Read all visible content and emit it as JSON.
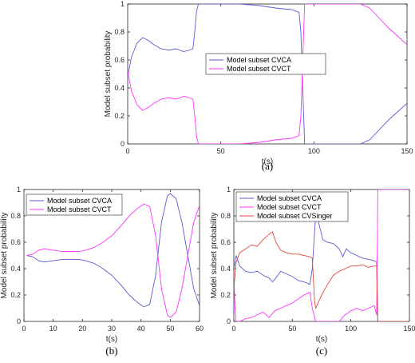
{
  "colors": {
    "cvca": "#5b5bd6",
    "cvct": "#ff33ff",
    "cvsinger": "#e8473a",
    "axis": "#262626"
  },
  "chart_data": [
    {
      "type": "line",
      "caption": "(a)",
      "xlabel": "t(s)",
      "ylabel": "Model subset probability",
      "xlim": [
        0,
        150
      ],
      "ylim": [
        0,
        1
      ],
      "xticks": [
        0,
        50,
        100,
        150
      ],
      "yticks": [
        0,
        0.2,
        0.4,
        0.6,
        0.8,
        1
      ],
      "legend_position": "center-right",
      "series": [
        {
          "name": "Model subset CVCA",
          "color": "cvca",
          "points": [
            [
              0,
              0.48
            ],
            [
              2,
              0.62
            ],
            [
              5,
              0.72
            ],
            [
              8,
              0.76
            ],
            [
              11,
              0.74
            ],
            [
              14,
              0.71
            ],
            [
              18,
              0.68
            ],
            [
              22,
              0.67
            ],
            [
              26,
              0.68
            ],
            [
              30,
              0.66
            ],
            [
              33,
              0.67
            ],
            [
              35,
              0.68
            ],
            [
              36,
              0.8
            ],
            [
              37,
              0.95
            ],
            [
              38,
              1.0
            ],
            [
              60,
              1.0
            ],
            [
              70,
              0.99
            ],
            [
              80,
              0.97
            ],
            [
              88,
              0.96
            ],
            [
              92,
              0.94
            ],
            [
              93,
              0.8
            ],
            [
              94,
              0.4
            ],
            [
              95,
              0.0
            ],
            [
              125,
              0.0
            ],
            [
              130,
              0.03
            ],
            [
              135,
              0.1
            ],
            [
              140,
              0.17
            ],
            [
              145,
              0.23
            ],
            [
              150,
              0.29
            ]
          ]
        },
        {
          "name": "Model subset CVCT",
          "color": "cvct",
          "points": [
            [
              0,
              0.52
            ],
            [
              2,
              0.38
            ],
            [
              5,
              0.28
            ],
            [
              8,
              0.24
            ],
            [
              11,
              0.26
            ],
            [
              14,
              0.29
            ],
            [
              18,
              0.32
            ],
            [
              22,
              0.33
            ],
            [
              26,
              0.32
            ],
            [
              30,
              0.34
            ],
            [
              33,
              0.33
            ],
            [
              35,
              0.32
            ],
            [
              36,
              0.2
            ],
            [
              37,
              0.05
            ],
            [
              38,
              0.0
            ],
            [
              60,
              0.0
            ],
            [
              70,
              0.01
            ],
            [
              80,
              0.03
            ],
            [
              88,
              0.04
            ],
            [
              92,
              0.06
            ],
            [
              93,
              0.2
            ],
            [
              94,
              0.6
            ],
            [
              95,
              1.0
            ],
            [
              125,
              1.0
            ],
            [
              130,
              0.97
            ],
            [
              135,
              0.9
            ],
            [
              140,
              0.83
            ],
            [
              145,
              0.77
            ],
            [
              150,
              0.71
            ]
          ]
        }
      ]
    },
    {
      "type": "line",
      "caption": "(b)",
      "xlabel": "t(s)",
      "ylabel": "Model subset probability",
      "xlim": [
        0,
        60
      ],
      "ylim": [
        0,
        1
      ],
      "xticks": [
        0,
        10,
        20,
        30,
        40,
        50,
        60
      ],
      "yticks": [
        0,
        0.2,
        0.4,
        0.6,
        0.8,
        1
      ],
      "legend_position": "top-left",
      "series": [
        {
          "name": "Model subset CVCA",
          "color": "cvca",
          "points": [
            [
              1,
              0.5
            ],
            [
              3,
              0.49
            ],
            [
              5,
              0.46
            ],
            [
              7,
              0.45
            ],
            [
              10,
              0.46
            ],
            [
              13,
              0.47
            ],
            [
              16,
              0.47
            ],
            [
              19,
              0.47
            ],
            [
              21,
              0.46
            ],
            [
              24,
              0.44
            ],
            [
              27,
              0.4
            ],
            [
              30,
              0.35
            ],
            [
              33,
              0.28
            ],
            [
              36,
              0.2
            ],
            [
              39,
              0.14
            ],
            [
              41,
              0.11
            ],
            [
              43,
              0.13
            ],
            [
              45,
              0.35
            ],
            [
              47,
              0.75
            ],
            [
              49,
              0.95
            ],
            [
              50,
              0.97
            ],
            [
              52,
              0.93
            ],
            [
              54,
              0.75
            ],
            [
              56,
              0.5
            ],
            [
              58,
              0.25
            ],
            [
              60,
              0.12
            ]
          ]
        },
        {
          "name": "Model subset CVCT",
          "color": "cvct",
          "points": [
            [
              1,
              0.5
            ],
            [
              3,
              0.51
            ],
            [
              5,
              0.54
            ],
            [
              7,
              0.55
            ],
            [
              10,
              0.54
            ],
            [
              13,
              0.53
            ],
            [
              16,
              0.53
            ],
            [
              19,
              0.53
            ],
            [
              21,
              0.54
            ],
            [
              24,
              0.56
            ],
            [
              27,
              0.6
            ],
            [
              30,
              0.65
            ],
            [
              33,
              0.72
            ],
            [
              36,
              0.8
            ],
            [
              39,
              0.86
            ],
            [
              41,
              0.89
            ],
            [
              43,
              0.87
            ],
            [
              45,
              0.65
            ],
            [
              47,
              0.25
            ],
            [
              49,
              0.05
            ],
            [
              50,
              0.03
            ],
            [
              52,
              0.07
            ],
            [
              54,
              0.25
            ],
            [
              56,
              0.5
            ],
            [
              58,
              0.75
            ],
            [
              60,
              0.88
            ]
          ]
        }
      ]
    },
    {
      "type": "line",
      "caption": "(c)",
      "xlabel": "t(s)",
      "ylabel": "Model subset probability",
      "xlim": [
        0,
        150
      ],
      "ylim": [
        0,
        1
      ],
      "xticks": [
        0,
        50,
        100,
        150
      ],
      "yticks": [
        0,
        0.2,
        0.4,
        0.6,
        0.8,
        1
      ],
      "legend_position": "top-left",
      "series": [
        {
          "name": "Model subset CVCA",
          "color": "cvca",
          "points": [
            [
              0,
              0.4
            ],
            [
              2,
              0.5
            ],
            [
              5,
              0.42
            ],
            [
              10,
              0.38
            ],
            [
              15,
              0.37
            ],
            [
              20,
              0.38
            ],
            [
              25,
              0.35
            ],
            [
              30,
              0.33
            ],
            [
              33,
              0.3
            ],
            [
              36,
              0.33
            ],
            [
              40,
              0.38
            ],
            [
              45,
              0.36
            ],
            [
              50,
              0.34
            ],
            [
              55,
              0.31
            ],
            [
              60,
              0.3
            ],
            [
              65,
              0.28
            ],
            [
              67,
              0.4
            ],
            [
              70,
              0.82
            ],
            [
              73,
              0.73
            ],
            [
              76,
              0.62
            ],
            [
              80,
              0.6
            ],
            [
              85,
              0.59
            ],
            [
              90,
              0.55
            ],
            [
              93,
              0.49
            ],
            [
              96,
              0.55
            ],
            [
              100,
              0.52
            ],
            [
              105,
              0.5
            ],
            [
              110,
              0.48
            ],
            [
              115,
              0.47
            ],
            [
              120,
              0.46
            ],
            [
              122,
              0.45
            ],
            [
              123,
              0.0
            ],
            [
              150,
              0.0
            ]
          ]
        },
        {
          "name": "Model subset CVCT",
          "color": "cvct",
          "points": [
            [
              0,
              0.35
            ],
            [
              1,
              0.1
            ],
            [
              2,
              0.0
            ],
            [
              5,
              0.0
            ],
            [
              10,
              0.02
            ],
            [
              15,
              0.03
            ],
            [
              20,
              0.05
            ],
            [
              25,
              0.07
            ],
            [
              30,
              0.03
            ],
            [
              35,
              0.08
            ],
            [
              40,
              0.1
            ],
            [
              45,
              0.12
            ],
            [
              50,
              0.14
            ],
            [
              55,
              0.17
            ],
            [
              60,
              0.2
            ],
            [
              65,
              0.22
            ],
            [
              67,
              0.1
            ],
            [
              70,
              0.0
            ],
            [
              90,
              0.0
            ],
            [
              95,
              0.05
            ],
            [
              100,
              0.08
            ],
            [
              105,
              0.1
            ],
            [
              110,
              0.08
            ],
            [
              115,
              0.1
            ],
            [
              120,
              0.12
            ],
            [
              122,
              0.05
            ],
            [
              123,
              1.0
            ],
            [
              150,
              1.0
            ]
          ]
        },
        {
          "name": "Model subset CVSinger",
          "color": "cvsinger",
          "points": [
            [
              0,
              0.25
            ],
            [
              2,
              0.45
            ],
            [
              5,
              0.52
            ],
            [
              10,
              0.55
            ],
            [
              15,
              0.58
            ],
            [
              20,
              0.57
            ],
            [
              25,
              0.62
            ],
            [
              30,
              0.66
            ],
            [
              33,
              0.68
            ],
            [
              36,
              0.6
            ],
            [
              40,
              0.54
            ],
            [
              45,
              0.52
            ],
            [
              50,
              0.51
            ],
            [
              55,
              0.51
            ],
            [
              60,
              0.5
            ],
            [
              65,
              0.49
            ],
            [
              67,
              0.48
            ],
            [
              69,
              0.15
            ],
            [
              70,
              0.1
            ],
            [
              75,
              0.2
            ],
            [
              80,
              0.28
            ],
            [
              85,
              0.35
            ],
            [
              90,
              0.38
            ],
            [
              95,
              0.4
            ],
            [
              100,
              0.42
            ],
            [
              105,
              0.42
            ],
            [
              110,
              0.43
            ],
            [
              115,
              0.41
            ],
            [
              120,
              0.42
            ],
            [
              122,
              0.42
            ],
            [
              123,
              0.0
            ],
            [
              150,
              0.0
            ]
          ]
        }
      ]
    }
  ]
}
